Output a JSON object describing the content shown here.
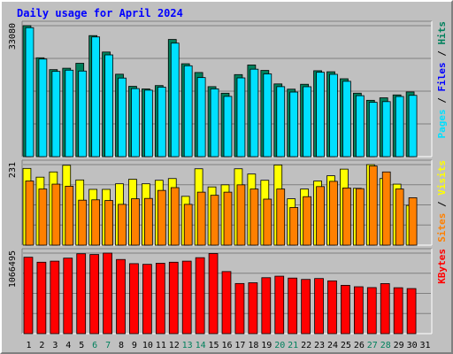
{
  "title": "Daily usage for April 2024",
  "colors": {
    "background": "#c0c0c0",
    "plot_bg": "#c0c0c0",
    "hits": "#00805c",
    "files": "#00e0ff",
    "visits": "#ffff00",
    "sites": "#ff8000",
    "kbytes": "#ff0000",
    "title": "#0000ff",
    "weekend_label": "#00805c",
    "weekday_label": "#000000"
  },
  "chart_data": [
    {
      "type": "bar",
      "panel": "pages-files-hits",
      "right_label": [
        {
          "text": "Pages",
          "color": "#00e0ff"
        },
        {
          "text": " / ",
          "color": "#000000"
        },
        {
          "text": "Files",
          "color": "#0000ff"
        },
        {
          "text": " / ",
          "color": "#000000"
        },
        {
          "text": "Hits",
          "color": "#00805c"
        }
      ],
      "ymax_label": "33080",
      "ylim": [
        0,
        33080
      ],
      "grid": true,
      "categories": [
        "1",
        "2",
        "3",
        "4",
        "5",
        "6",
        "7",
        "8",
        "9",
        "10",
        "11",
        "12",
        "13",
        "14",
        "15",
        "16",
        "17",
        "18",
        "19",
        "20",
        "21",
        "22",
        "23",
        "24",
        "25",
        "26",
        "27",
        "28",
        "29",
        "30",
        "31"
      ],
      "series": [
        {
          "name": "Hits",
          "color": "#00805c",
          "values": [
            33080,
            24970,
            21980,
            22330,
            23580,
            30570,
            26420,
            20820,
            17760,
            17100,
            17950,
            29600,
            23460,
            21250,
            17680,
            16020,
            20720,
            23150,
            21780,
            18370,
            17040,
            18280,
            21700,
            21440,
            19670,
            16030,
            14230,
            14860,
            15590,
            16340,
            null
          ]
        },
        {
          "name": "Files",
          "color": "#00e0ff",
          "values": [
            32570,
            24650,
            21530,
            21840,
            21620,
            30230,
            25700,
            19850,
            17190,
            16790,
            17560,
            28670,
            22950,
            19970,
            17120,
            15220,
            19890,
            22090,
            20900,
            17680,
            16310,
            17660,
            21310,
            20790,
            19030,
            15400,
            13720,
            13900,
            15190,
            15480,
            null
          ]
        }
      ]
    },
    {
      "type": "bar",
      "panel": "visits-sites",
      "right_label": [
        {
          "text": "Sites",
          "color": "#ff8000"
        },
        {
          "text": " / ",
          "color": "#000000"
        },
        {
          "text": "Visits",
          "color": "#ffff00"
        }
      ],
      "ymax_label": "231",
      "ylim": [
        0,
        231
      ],
      "grid": true,
      "categories": [
        "1",
        "2",
        "3",
        "4",
        "5",
        "6",
        "7",
        "8",
        "9",
        "10",
        "11",
        "12",
        "13",
        "14",
        "15",
        "16",
        "17",
        "18",
        "19",
        "20",
        "21",
        "22",
        "23",
        "24",
        "25",
        "26",
        "27",
        "28",
        "29",
        "30",
        "31"
      ],
      "series": [
        {
          "name": "Visits",
          "color": "#ffff00",
          "values": [
            220,
            195,
            210,
            229,
            187,
            160,
            160,
            176,
            189,
            176,
            186,
            191,
            140,
            219,
            167,
            173,
            219,
            204,
            186,
            230,
            133,
            161,
            184,
            199,
            218,
            163,
            231,
            191,
            175,
            114,
            null
          ]
        },
        {
          "name": "Sites",
          "color": "#ff8000",
          "values": [
            184,
            161,
            175,
            169,
            129,
            130,
            128,
            117,
            133,
            134,
            157,
            165,
            117,
            152,
            143,
            152,
            173,
            161,
            132,
            161,
            108,
            139,
            168,
            183,
            164,
            162,
            227,
            210,
            161,
            136,
            null
          ]
        }
      ]
    },
    {
      "type": "bar",
      "panel": "kbytes",
      "right_label": [
        {
          "text": "KBytes",
          "color": "#ff0000"
        }
      ],
      "ymax_label": "1066495",
      "ylim": [
        0,
        1066495
      ],
      "grid": true,
      "categories": [
        "1",
        "2",
        "3",
        "4",
        "5",
        "6",
        "7",
        "8",
        "9",
        "10",
        "11",
        "12",
        "13",
        "14",
        "15",
        "16",
        "17",
        "18",
        "19",
        "20",
        "21",
        "22",
        "23",
        "24",
        "25",
        "26",
        "27",
        "28",
        "29",
        "30",
        "31"
      ],
      "series": [
        {
          "name": "KBytes",
          "color": "#ff0000",
          "values": [
            1012000,
            946000,
            960000,
            1000000,
            1058000,
            1048000,
            1066495,
            982000,
            927000,
            918000,
            932000,
            946000,
            960000,
            1006000,
            1061000,
            822000,
            664000,
            674000,
            741000,
            761000,
            736000,
            718000,
            730000,
            699000,
            640000,
            621000,
            610000,
            663000,
            608000,
            597000,
            null
          ]
        }
      ]
    }
  ],
  "x_axis": {
    "days": [
      {
        "label": "1",
        "weekend": false
      },
      {
        "label": "2",
        "weekend": false
      },
      {
        "label": "3",
        "weekend": false
      },
      {
        "label": "4",
        "weekend": false
      },
      {
        "label": "5",
        "weekend": false
      },
      {
        "label": "6",
        "weekend": true
      },
      {
        "label": "7",
        "weekend": true
      },
      {
        "label": "8",
        "weekend": false
      },
      {
        "label": "9",
        "weekend": false
      },
      {
        "label": "10",
        "weekend": false
      },
      {
        "label": "11",
        "weekend": false
      },
      {
        "label": "12",
        "weekend": false
      },
      {
        "label": "13",
        "weekend": true
      },
      {
        "label": "14",
        "weekend": true
      },
      {
        "label": "15",
        "weekend": false
      },
      {
        "label": "16",
        "weekend": false
      },
      {
        "label": "17",
        "weekend": false
      },
      {
        "label": "18",
        "weekend": false
      },
      {
        "label": "19",
        "weekend": false
      },
      {
        "label": "20",
        "weekend": true
      },
      {
        "label": "21",
        "weekend": true
      },
      {
        "label": "22",
        "weekend": false
      },
      {
        "label": "23",
        "weekend": false
      },
      {
        "label": "24",
        "weekend": false
      },
      {
        "label": "25",
        "weekend": false
      },
      {
        "label": "26",
        "weekend": false
      },
      {
        "label": "27",
        "weekend": true
      },
      {
        "label": "28",
        "weekend": true
      },
      {
        "label": "29",
        "weekend": false
      },
      {
        "label": "30",
        "weekend": false
      },
      {
        "label": "31",
        "weekend": false
      }
    ]
  }
}
